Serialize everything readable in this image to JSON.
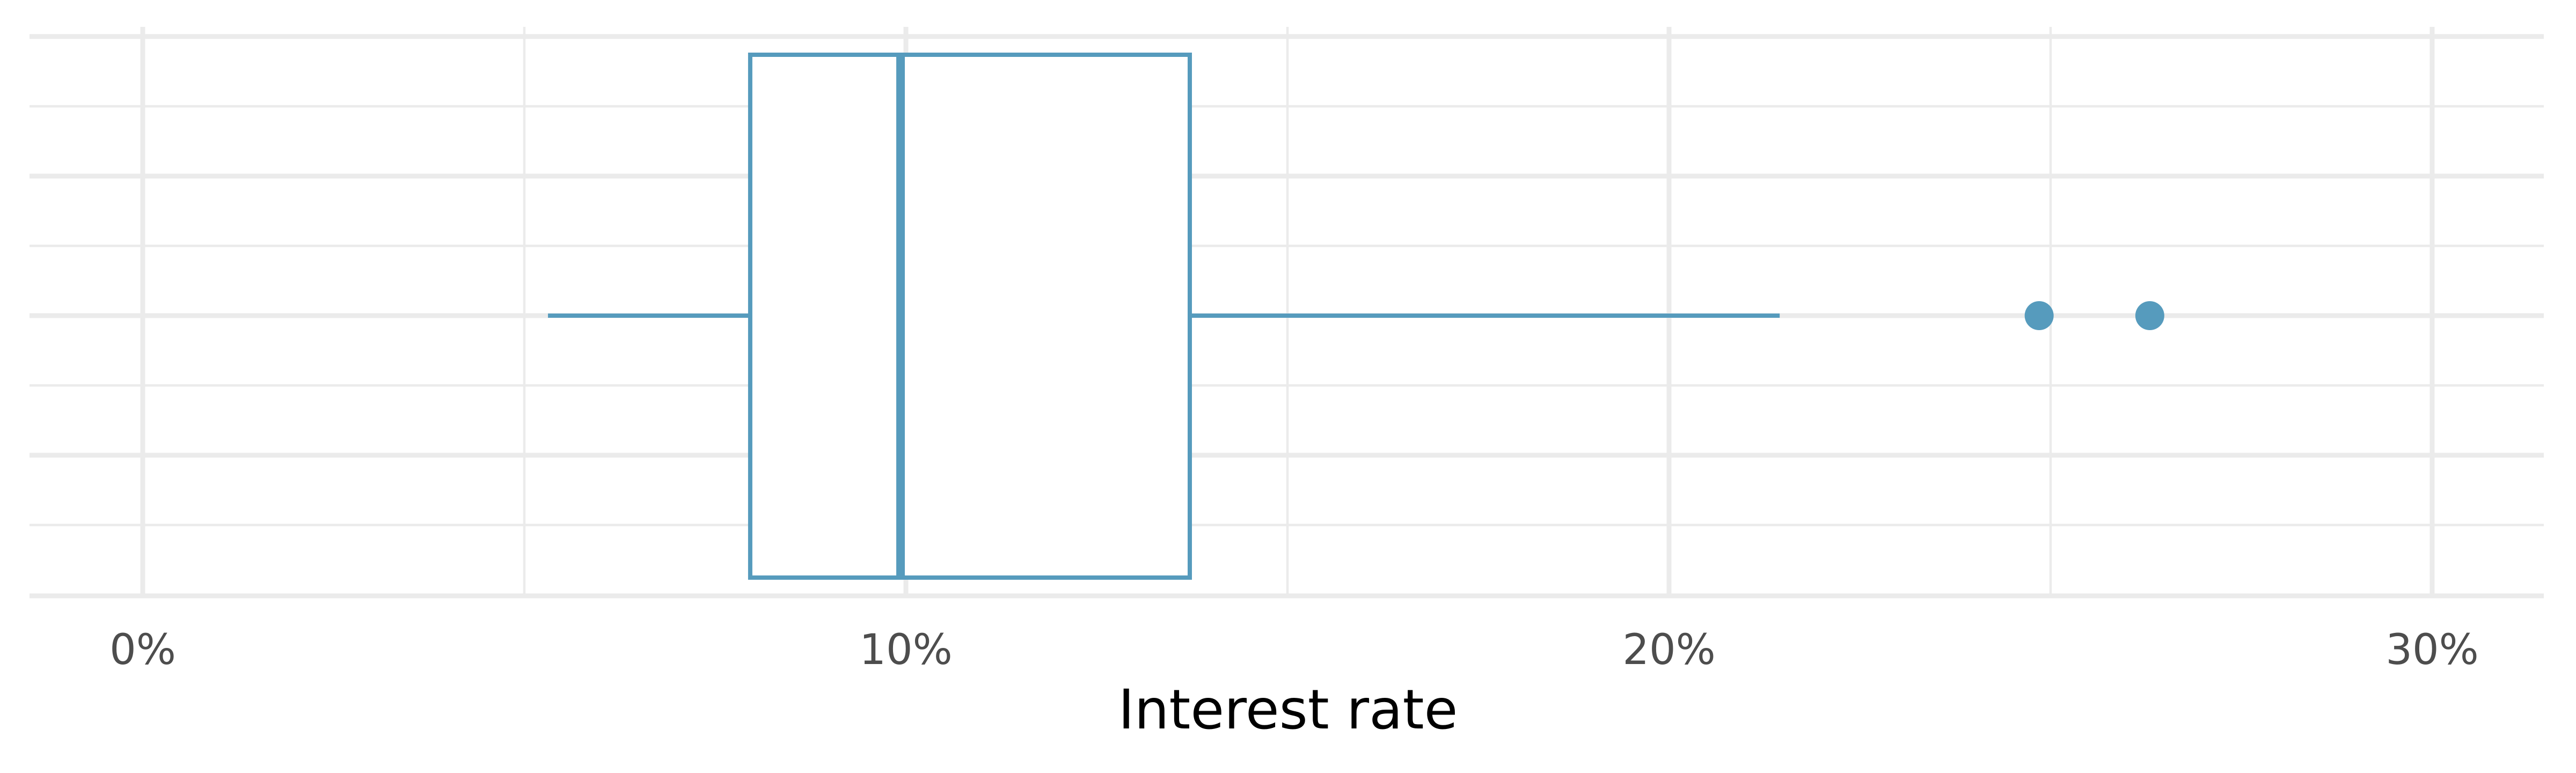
{
  "chart_data": {
    "type": "boxplot",
    "orientation": "horizontal",
    "xlabel": "Interest rate",
    "x_ticks": [
      "0%",
      "10%",
      "20%",
      "30%"
    ],
    "x_tick_values": [
      0,
      10,
      20,
      30
    ],
    "xlim": [
      -1.5,
      31.5
    ],
    "grid": true,
    "box": {
      "whisker_low": 5.31,
      "q1": 7.96,
      "median": 9.93,
      "q3": 13.72,
      "whisker_high": 21.45,
      "outliers": [
        24.85,
        26.3
      ]
    },
    "colors": {
      "box": "#569bbd",
      "grid": "#ebebeb",
      "tick_text": "#4d4d4d",
      "title_text": "#000000"
    }
  }
}
